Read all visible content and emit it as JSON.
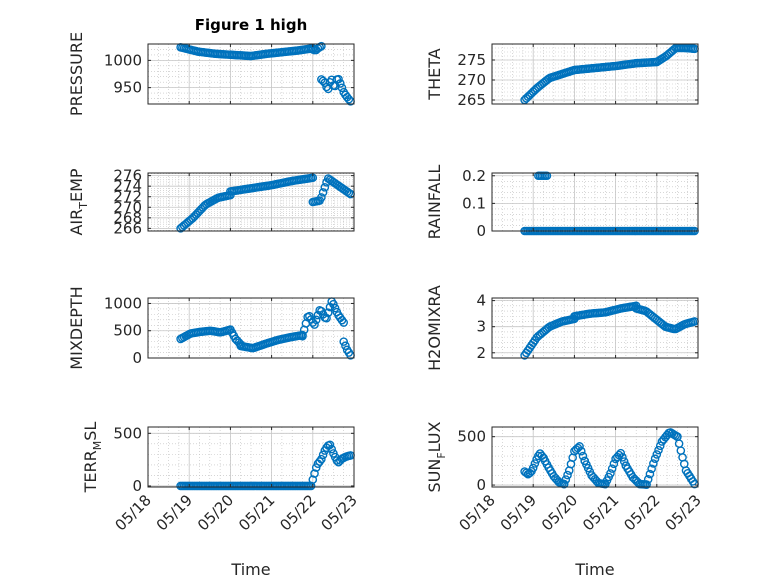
{
  "figure": {
    "title": "Figure 1 high",
    "marker_color": "#0072bd"
  },
  "chart_data": [
    {
      "id": "pressure",
      "type": "scatter",
      "title": "Figure 1 high",
      "xlabel": "",
      "ylabel": "PRESSURE",
      "xlim": [
        "2024-05-18",
        "2024-05-23"
      ],
      "ylim": [
        920,
        1030
      ],
      "yticks": [
        950,
        1000
      ],
      "show_xticklabels": false,
      "grid": true,
      "segments": [
        {
          "x0": "2024-05-18T19:00",
          "x1": "2024-05-20T12:00",
          "y": [
            1024,
            1016,
            1012,
            1010,
            1008
          ]
        },
        {
          "x0": "2024-05-20T12:00",
          "x1": "2024-05-22T00:00",
          "y": [
            1008,
            1012,
            1015,
            1018,
            1022
          ]
        },
        {
          "x0": "2024-05-22T00:00",
          "x1": "2024-05-22T05:00",
          "y": [
            1020,
            1018,
            1023,
            1026
          ]
        },
        {
          "x0": "2024-05-22T05:00",
          "x1": "2024-05-22T22:00",
          "y": [
            965,
            960,
            945,
            968,
            948,
            970,
            955,
            940,
            932,
            925
          ]
        }
      ]
    },
    {
      "id": "theta",
      "type": "scatter",
      "xlabel": "",
      "ylabel": "THETA",
      "xlim": [
        "2024-05-18",
        "2024-05-23"
      ],
      "ylim": [
        264,
        279
      ],
      "yticks": [
        265,
        270,
        275
      ],
      "show_xticklabels": false,
      "grid": true,
      "segments": [
        {
          "x0": "2024-05-18T19:00",
          "x1": "2024-05-20T00:00",
          "y": [
            265,
            268,
            270.5,
            271.5,
            272.5
          ]
        },
        {
          "x0": "2024-05-20T00:00",
          "x1": "2024-05-22T00:00",
          "y": [
            272.5,
            273,
            273.5,
            274.2,
            274.5
          ]
        },
        {
          "x0": "2024-05-22T00:00",
          "x1": "2024-05-22T22:00",
          "y": [
            274.5,
            276,
            278,
            278,
            277.8
          ]
        }
      ]
    },
    {
      "id": "air_temp",
      "type": "scatter",
      "xlabel": "",
      "ylabel": "AIR_TEMP",
      "ylabel_base": "AIR",
      "ylabel_sub": "T",
      "ylabel_rest": "EMP",
      "xlim": [
        "2024-05-18",
        "2024-05-23"
      ],
      "ylim": [
        265.5,
        276.5
      ],
      "yticks": [
        266,
        268,
        270,
        272,
        274,
        276
      ],
      "show_xticklabels": false,
      "grid": true,
      "segments": [
        {
          "x0": "2024-05-18T19:00",
          "x1": "2024-05-20T00:00",
          "y": [
            266,
            268,
            270.5,
            271.8,
            272.3
          ]
        },
        {
          "x0": "2024-05-20T00:00",
          "x1": "2024-05-22T00:00",
          "y": [
            273,
            273.6,
            274.2,
            275,
            275.6
          ]
        },
        {
          "x0": "2024-05-22T00:00",
          "x1": "2024-05-22T22:00",
          "y": [
            271,
            271.3,
            275.5,
            274.5,
            273.5,
            272.5
          ]
        }
      ]
    },
    {
      "id": "rainfall",
      "type": "scatter",
      "xlabel": "",
      "ylabel": "RAINFALL",
      "xlim": [
        "2024-05-18",
        "2024-05-23"
      ],
      "ylim": [
        0,
        0.21
      ],
      "yticks": [
        0,
        0.1,
        0.2
      ],
      "show_xticklabels": false,
      "grid": true,
      "segments": [
        {
          "x0": "2024-05-18T19:00",
          "x1": "2024-05-22T22:00",
          "y": [
            0,
            0
          ]
        },
        {
          "x0": "2024-05-19T03:00",
          "x1": "2024-05-19T08:00",
          "y": [
            0.2,
            0.2
          ]
        }
      ]
    },
    {
      "id": "mixdepth",
      "type": "scatter",
      "xlabel": "",
      "ylabel": "MIXDEPTH",
      "xlim": [
        "2024-05-18",
        "2024-05-23"
      ],
      "ylim": [
        0,
        1100
      ],
      "yticks": [
        0,
        500,
        1000
      ],
      "show_xticklabels": false,
      "grid": true,
      "segments": [
        {
          "x0": "2024-05-18T19:00",
          "x1": "2024-05-20T00:00",
          "y": [
            350,
            450,
            480,
            500,
            470,
            520
          ]
        },
        {
          "x0": "2024-05-20T00:00",
          "x1": "2024-05-20T06:00",
          "y": [
            520,
            350,
            250
          ]
        },
        {
          "x0": "2024-05-20T06:00",
          "x1": "2024-05-21T18:00",
          "y": [
            220,
            180,
            260,
            330,
            380,
            420
          ]
        },
        {
          "x0": "2024-05-21T18:00",
          "x1": "2024-05-22T18:00",
          "y": [
            400,
            800,
            600,
            900,
            700,
            1050,
            800,
            650
          ]
        },
        {
          "x0": "2024-05-22T18:00",
          "x1": "2024-05-22T22:00",
          "y": [
            300,
            150,
            50
          ]
        }
      ]
    },
    {
      "id": "h2omixra",
      "type": "scatter",
      "xlabel": "",
      "ylabel": "H2OMIXRA",
      "xlim": [
        "2024-05-18",
        "2024-05-23"
      ],
      "ylim": [
        1.8,
        4.1
      ],
      "yticks": [
        2,
        3,
        4
      ],
      "show_xticklabels": false,
      "grid": true,
      "segments": [
        {
          "x0": "2024-05-18T19:00",
          "x1": "2024-05-20T00:00",
          "y": [
            1.9,
            2.6,
            3.0,
            3.2,
            3.3
          ]
        },
        {
          "x0": "2024-05-20T00:00",
          "x1": "2024-05-21T12:00",
          "y": [
            3.4,
            3.5,
            3.55,
            3.7,
            3.8
          ]
        },
        {
          "x0": "2024-05-21T12:00",
          "x1": "2024-05-22T22:00",
          "y": [
            3.7,
            3.6,
            3.3,
            3.0,
            2.9,
            3.1,
            3.2
          ]
        }
      ]
    },
    {
      "id": "terr_msl",
      "type": "scatter",
      "xlabel": "Time",
      "ylabel": "TERR_MSL",
      "ylabel_base": "TERR",
      "ylabel_sub": "M",
      "ylabel_rest": "SL",
      "xlim": [
        "2024-05-18",
        "2024-05-23"
      ],
      "ylim": [
        -10,
        560
      ],
      "yticks": [
        0,
        500
      ],
      "show_xticklabels": true,
      "grid": true,
      "xticklabels": [
        "05/18",
        "05/19",
        "05/20",
        "05/21",
        "05/22",
        "05/23"
      ],
      "segments": [
        {
          "x0": "2024-05-18T19:00",
          "x1": "2024-05-21T23:00",
          "y": [
            0,
            0
          ]
        },
        {
          "x0": "2024-05-22T00:00",
          "x1": "2024-05-22T22:00",
          "y": [
            60,
            200,
            250,
            350,
            400,
            300,
            220,
            260,
            280,
            290
          ]
        }
      ]
    },
    {
      "id": "sun_flux",
      "type": "scatter",
      "xlabel": "Time",
      "ylabel": "SUN_FLUX",
      "ylabel_base": "SUN",
      "ylabel_sub": "F",
      "ylabel_rest": "LUX",
      "xlim": [
        "2024-05-18",
        "2024-05-23"
      ],
      "ylim": [
        -20,
        600
      ],
      "yticks": [
        0,
        500
      ],
      "show_xticklabels": true,
      "grid": true,
      "xticklabels": [
        "05/18",
        "05/19",
        "05/20",
        "05/21",
        "05/22",
        "05/23"
      ],
      "segments": [
        {
          "x0": "2024-05-18T19:00",
          "x1": "2024-05-19T06:00",
          "y": [
            140,
            110,
            150,
            250,
            330,
            280
          ]
        },
        {
          "x0": "2024-05-19T06:00",
          "x1": "2024-05-19T18:00",
          "y": [
            280,
            180,
            90,
            30,
            10
          ]
        },
        {
          "x0": "2024-05-19T18:00",
          "x1": "2024-05-20T06:00",
          "y": [
            10,
            150,
            350,
            400,
            250
          ]
        },
        {
          "x0": "2024-05-20T06:00",
          "x1": "2024-05-20T18:00",
          "y": [
            250,
            100,
            20,
            10
          ]
        },
        {
          "x0": "2024-05-20T18:00",
          "x1": "2024-05-21T06:00",
          "y": [
            10,
            120,
            270,
            330,
            200
          ]
        },
        {
          "x0": "2024-05-21T06:00",
          "x1": "2024-05-21T18:00",
          "y": [
            200,
            80,
            10,
            5
          ]
        },
        {
          "x0": "2024-05-21T18:00",
          "x1": "2024-05-22T12:00",
          "y": [
            5,
            250,
            450,
            550,
            500
          ]
        },
        {
          "x0": "2024-05-22T12:00",
          "x1": "2024-05-22T22:00",
          "y": [
            500,
            320,
            150,
            80,
            10
          ]
        }
      ]
    }
  ]
}
